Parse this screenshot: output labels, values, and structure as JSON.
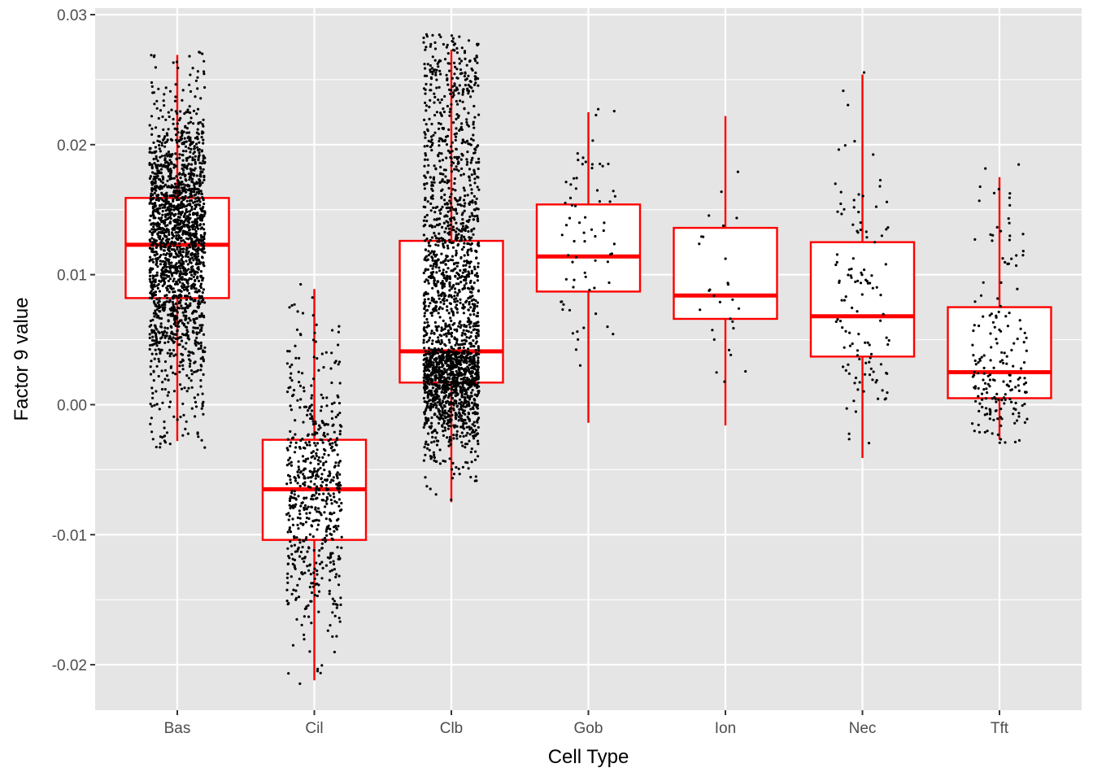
{
  "chart_data": {
    "type": "box",
    "xlabel": "Cell Type",
    "ylabel": "Factor 9 value",
    "ylim": [
      -0.0235,
      0.0305
    ],
    "yticks": [
      -0.02,
      -0.01,
      0.0,
      0.01,
      0.02,
      0.03
    ],
    "ytick_labels": [
      "-0.02",
      "-0.01",
      "0.00",
      "0.01",
      "0.02",
      "0.03"
    ],
    "categories": [
      "Bas",
      "Cil",
      "Clb",
      "Gob",
      "Ion",
      "Nec",
      "Tft"
    ],
    "boxes": [
      {
        "category": "Bas",
        "whisker_low": -0.0028,
        "q1": 0.0082,
        "median": 0.0123,
        "q3": 0.0159,
        "whisker_high": 0.0269,
        "n_points": 1900
      },
      {
        "category": "Cil",
        "whisker_low": -0.0212,
        "q1": -0.0104,
        "median": -0.0065,
        "q3": -0.0027,
        "whisker_high": 0.0089,
        "n_points": 600
      },
      {
        "category": "Clb",
        "whisker_low": -0.0075,
        "q1": 0.0017,
        "median": 0.0041,
        "q3": 0.0126,
        "whisker_high": 0.0273,
        "n_points": 2200
      },
      {
        "category": "Gob",
        "whisker_low": -0.0014,
        "q1": 0.0087,
        "median": 0.0114,
        "q3": 0.0154,
        "whisker_high": 0.0225,
        "n_points": 70
      },
      {
        "category": "Ion",
        "whisker_low": -0.0016,
        "q1": 0.0066,
        "median": 0.0084,
        "q3": 0.0136,
        "whisker_high": 0.0222,
        "n_points": 28
      },
      {
        "category": "Nec",
        "whisker_low": -0.0041,
        "q1": 0.0037,
        "median": 0.0068,
        "q3": 0.0125,
        "whisker_high": 0.0254,
        "n_points": 120
      },
      {
        "category": "Tft",
        "whisker_low": -0.0027,
        "q1": 0.0005,
        "median": 0.0025,
        "q3": 0.0075,
        "whisker_high": 0.0175,
        "n_points": 190
      }
    ],
    "colors": {
      "panel_background": "#e5e5e5",
      "grid": "#ffffff",
      "box_outline": "#ff0000",
      "box_fill": "#ffffff",
      "points": "#000000"
    },
    "grid": true,
    "legend": "none"
  }
}
